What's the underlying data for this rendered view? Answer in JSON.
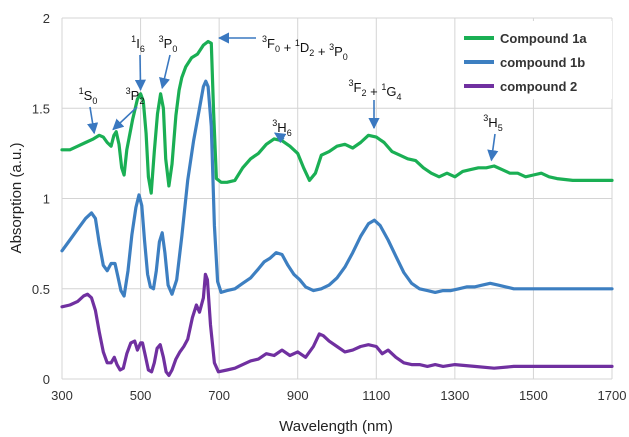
{
  "chart_data": {
    "type": "line",
    "title": "",
    "xlabel": "Wavelength (nm)",
    "ylabel": "Absorption  (a.u.)",
    "xlim": [
      300,
      1700
    ],
    "ylim": [
      0,
      2
    ],
    "x_ticks": [
      300,
      500,
      700,
      900,
      1100,
      1300,
      1500,
      1700
    ],
    "y_ticks": [
      0,
      0.5,
      1,
      1.5,
      2
    ],
    "y_tick_labels": [
      "0",
      "0.5",
      "1",
      "1.5",
      "2"
    ],
    "grid": true,
    "legend_position": "top-right",
    "series": [
      {
        "name": "Compound 1a",
        "color": "#1aaf54",
        "points": [
          [
            300,
            1.27
          ],
          [
            320,
            1.27
          ],
          [
            340,
            1.29
          ],
          [
            360,
            1.31
          ],
          [
            380,
            1.33
          ],
          [
            395,
            1.35
          ],
          [
            405,
            1.34
          ],
          [
            415,
            1.31
          ],
          [
            425,
            1.29
          ],
          [
            432,
            1.35
          ],
          [
            438,
            1.37
          ],
          [
            445,
            1.3
          ],
          [
            452,
            1.17
          ],
          [
            458,
            1.13
          ],
          [
            465,
            1.27
          ],
          [
            480,
            1.44
          ],
          [
            492,
            1.55
          ],
          [
            500,
            1.58
          ],
          [
            507,
            1.54
          ],
          [
            514,
            1.36
          ],
          [
            520,
            1.12
          ],
          [
            527,
            1.03
          ],
          [
            535,
            1.26
          ],
          [
            543,
            1.47
          ],
          [
            551,
            1.58
          ],
          [
            558,
            1.5
          ],
          [
            564,
            1.22
          ],
          [
            572,
            1.07
          ],
          [
            580,
            1.19
          ],
          [
            590,
            1.46
          ],
          [
            598,
            1.6
          ],
          [
            605,
            1.67
          ],
          [
            615,
            1.73
          ],
          [
            630,
            1.78
          ],
          [
            645,
            1.8
          ],
          [
            660,
            1.85
          ],
          [
            672,
            1.87
          ],
          [
            680,
            1.86
          ],
          [
            686,
            1.48
          ],
          [
            693,
            1.11
          ],
          [
            705,
            1.09
          ],
          [
            720,
            1.09
          ],
          [
            740,
            1.1
          ],
          [
            760,
            1.17
          ],
          [
            780,
            1.22
          ],
          [
            800,
            1.25
          ],
          [
            820,
            1.3
          ],
          [
            840,
            1.33
          ],
          [
            860,
            1.32
          ],
          [
            880,
            1.29
          ],
          [
            900,
            1.25
          ],
          [
            915,
            1.17
          ],
          [
            930,
            1.1
          ],
          [
            945,
            1.14
          ],
          [
            960,
            1.24
          ],
          [
            980,
            1.26
          ],
          [
            1000,
            1.29
          ],
          [
            1020,
            1.3
          ],
          [
            1040,
            1.28
          ],
          [
            1060,
            1.31
          ],
          [
            1080,
            1.35
          ],
          [
            1100,
            1.34
          ],
          [
            1120,
            1.31
          ],
          [
            1140,
            1.26
          ],
          [
            1160,
            1.24
          ],
          [
            1180,
            1.22
          ],
          [
            1200,
            1.21
          ],
          [
            1220,
            1.17
          ],
          [
            1240,
            1.14
          ],
          [
            1260,
            1.12
          ],
          [
            1280,
            1.14
          ],
          [
            1300,
            1.12
          ],
          [
            1320,
            1.15
          ],
          [
            1340,
            1.16
          ],
          [
            1360,
            1.17
          ],
          [
            1380,
            1.17
          ],
          [
            1400,
            1.18
          ],
          [
            1420,
            1.16
          ],
          [
            1440,
            1.14
          ],
          [
            1460,
            1.14
          ],
          [
            1480,
            1.12
          ],
          [
            1500,
            1.13
          ],
          [
            1520,
            1.14
          ],
          [
            1540,
            1.12
          ],
          [
            1560,
            1.11
          ],
          [
            1600,
            1.1
          ],
          [
            1650,
            1.1
          ],
          [
            1700,
            1.1
          ]
        ]
      },
      {
        "name": "compound 1b",
        "color": "#3d7fc1",
        "points": [
          [
            300,
            0.71
          ],
          [
            320,
            0.77
          ],
          [
            340,
            0.83
          ],
          [
            360,
            0.89
          ],
          [
            375,
            0.92
          ],
          [
            385,
            0.89
          ],
          [
            395,
            0.75
          ],
          [
            405,
            0.63
          ],
          [
            415,
            0.6
          ],
          [
            425,
            0.64
          ],
          [
            435,
            0.64
          ],
          [
            442,
            0.57
          ],
          [
            450,
            0.49
          ],
          [
            458,
            0.46
          ],
          [
            468,
            0.6
          ],
          [
            478,
            0.8
          ],
          [
            488,
            0.95
          ],
          [
            496,
            1.02
          ],
          [
            503,
            0.96
          ],
          [
            510,
            0.77
          ],
          [
            518,
            0.58
          ],
          [
            525,
            0.51
          ],
          [
            533,
            0.5
          ],
          [
            540,
            0.6
          ],
          [
            548,
            0.76
          ],
          [
            555,
            0.81
          ],
          [
            562,
            0.7
          ],
          [
            570,
            0.52
          ],
          [
            580,
            0.47
          ],
          [
            592,
            0.55
          ],
          [
            605,
            0.79
          ],
          [
            620,
            1.1
          ],
          [
            635,
            1.32
          ],
          [
            650,
            1.5
          ],
          [
            660,
            1.62
          ],
          [
            666,
            1.65
          ],
          [
            672,
            1.62
          ],
          [
            680,
            1.4
          ],
          [
            688,
            0.85
          ],
          [
            696,
            0.54
          ],
          [
            705,
            0.48
          ],
          [
            720,
            0.49
          ],
          [
            740,
            0.5
          ],
          [
            760,
            0.53
          ],
          [
            780,
            0.56
          ],
          [
            800,
            0.61
          ],
          [
            815,
            0.65
          ],
          [
            830,
            0.67
          ],
          [
            845,
            0.7
          ],
          [
            860,
            0.69
          ],
          [
            875,
            0.63
          ],
          [
            890,
            0.58
          ],
          [
            905,
            0.55
          ],
          [
            920,
            0.51
          ],
          [
            940,
            0.49
          ],
          [
            960,
            0.5
          ],
          [
            980,
            0.52
          ],
          [
            1000,
            0.56
          ],
          [
            1020,
            0.62
          ],
          [
            1040,
            0.7
          ],
          [
            1060,
            0.79
          ],
          [
            1080,
            0.86
          ],
          [
            1095,
            0.88
          ],
          [
            1110,
            0.85
          ],
          [
            1130,
            0.77
          ],
          [
            1150,
            0.68
          ],
          [
            1170,
            0.59
          ],
          [
            1190,
            0.53
          ],
          [
            1210,
            0.5
          ],
          [
            1230,
            0.49
          ],
          [
            1250,
            0.48
          ],
          [
            1270,
            0.49
          ],
          [
            1290,
            0.49
          ],
          [
            1310,
            0.5
          ],
          [
            1330,
            0.51
          ],
          [
            1350,
            0.51
          ],
          [
            1370,
            0.52
          ],
          [
            1390,
            0.53
          ],
          [
            1410,
            0.52
          ],
          [
            1430,
            0.51
          ],
          [
            1450,
            0.5
          ],
          [
            1500,
            0.5
          ],
          [
            1550,
            0.5
          ],
          [
            1600,
            0.5
          ],
          [
            1650,
            0.5
          ],
          [
            1700,
            0.5
          ]
        ]
      },
      {
        "name": "compound 2",
        "color": "#7030a0",
        "points": [
          [
            300,
            0.4
          ],
          [
            320,
            0.41
          ],
          [
            340,
            0.43
          ],
          [
            355,
            0.46
          ],
          [
            365,
            0.47
          ],
          [
            375,
            0.45
          ],
          [
            385,
            0.38
          ],
          [
            395,
            0.26
          ],
          [
            405,
            0.15
          ],
          [
            415,
            0.09
          ],
          [
            425,
            0.09
          ],
          [
            433,
            0.12
          ],
          [
            440,
            0.08
          ],
          [
            448,
            0.05
          ],
          [
            456,
            0.06
          ],
          [
            465,
            0.14
          ],
          [
            475,
            0.2
          ],
          [
            485,
            0.21
          ],
          [
            492,
            0.16
          ],
          [
            500,
            0.2
          ],
          [
            505,
            0.2
          ],
          [
            512,
            0.13
          ],
          [
            520,
            0.05
          ],
          [
            528,
            0.04
          ],
          [
            535,
            0.09
          ],
          [
            542,
            0.17
          ],
          [
            550,
            0.19
          ],
          [
            558,
            0.12
          ],
          [
            565,
            0.04
          ],
          [
            572,
            0.02
          ],
          [
            580,
            0.05
          ],
          [
            590,
            0.11
          ],
          [
            600,
            0.15
          ],
          [
            610,
            0.18
          ],
          [
            620,
            0.22
          ],
          [
            632,
            0.34
          ],
          [
            642,
            0.41
          ],
          [
            650,
            0.37
          ],
          [
            660,
            0.45
          ],
          [
            665,
            0.58
          ],
          [
            670,
            0.55
          ],
          [
            678,
            0.3
          ],
          [
            688,
            0.09
          ],
          [
            698,
            0.04
          ],
          [
            720,
            0.05
          ],
          [
            740,
            0.06
          ],
          [
            760,
            0.08
          ],
          [
            780,
            0.1
          ],
          [
            800,
            0.11
          ],
          [
            820,
            0.14
          ],
          [
            840,
            0.13
          ],
          [
            860,
            0.16
          ],
          [
            880,
            0.13
          ],
          [
            900,
            0.15
          ],
          [
            920,
            0.12
          ],
          [
            940,
            0.18
          ],
          [
            955,
            0.25
          ],
          [
            965,
            0.24
          ],
          [
            980,
            0.21
          ],
          [
            1000,
            0.18
          ],
          [
            1020,
            0.15
          ],
          [
            1040,
            0.16
          ],
          [
            1060,
            0.18
          ],
          [
            1080,
            0.19
          ],
          [
            1100,
            0.18
          ],
          [
            1115,
            0.14
          ],
          [
            1130,
            0.16
          ],
          [
            1150,
            0.12
          ],
          [
            1170,
            0.09
          ],
          [
            1190,
            0.08
          ],
          [
            1210,
            0.08
          ],
          [
            1230,
            0.07
          ],
          [
            1250,
            0.08
          ],
          [
            1270,
            0.07
          ],
          [
            1300,
            0.08
          ],
          [
            1350,
            0.07
          ],
          [
            1400,
            0.06
          ],
          [
            1450,
            0.07
          ],
          [
            1500,
            0.07
          ],
          [
            1550,
            0.07
          ],
          [
            1600,
            0.07
          ],
          [
            1650,
            0.07
          ],
          [
            1700,
            0.07
          ]
        ]
      }
    ],
    "annotations": [
      {
        "base": "S",
        "sup": "1",
        "sub": "0",
        "tip": [
          382,
          1.34
        ]
      },
      {
        "base": "P",
        "sup": "3",
        "sub": "2",
        "tip": [
          430,
          1.36
        ]
      },
      {
        "base": "I",
        "sup": "1",
        "sub": "6",
        "tip": [
          500,
          1.58
        ]
      },
      {
        "base": "P",
        "sup": "3",
        "sub": "0",
        "tip": [
          555,
          1.59
        ]
      },
      {
        "base": "H",
        "sup": "3",
        "sub": "6",
        "tip": [
          842,
          1.34
        ]
      },
      {
        "base": "H",
        "sup": "3",
        "sub": "5",
        "tip": [
          1393,
          1.19
        ]
      }
    ],
    "annotation_long_1": [
      "3",
      "F",
      "0",
      " + ",
      "1",
      "D",
      "2",
      " + ",
      "3",
      "P",
      "0"
    ],
    "annotation_long_2": [
      "3",
      "F",
      "2",
      " + ",
      "1",
      "G",
      "4"
    ]
  }
}
